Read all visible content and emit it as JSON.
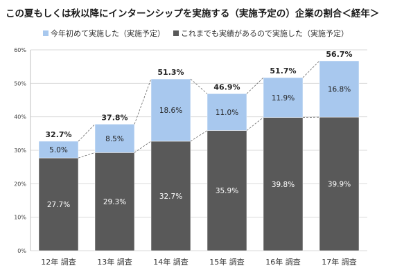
{
  "chart_data": {
    "type": "bar",
    "stacked": true,
    "title": "この夏もしくは秋以降にインターンシップを実施する（実施予定の）企業の割合＜経年＞",
    "categories": [
      "12年 調査",
      "13年 調査",
      "14年 調査",
      "15年 調査",
      "16年 調査",
      "17年 調査"
    ],
    "series": [
      {
        "name": "これまでも実績があるので実施した（実施予定）",
        "color": "#595959",
        "values": [
          27.7,
          29.3,
          32.7,
          35.9,
          39.8,
          39.9
        ],
        "labels": [
          "27.7%",
          "29.3%",
          "32.7%",
          "35.9%",
          "39.8%",
          "39.9%"
        ]
      },
      {
        "name": "今年初めて実施した（実施予定）",
        "color": "#a8c8ee",
        "values": [
          5.0,
          8.5,
          18.6,
          11.0,
          11.9,
          16.8
        ],
        "labels": [
          "5.0%",
          "8.5%",
          "18.6%",
          "11.0%",
          "11.9%",
          "16.8%"
        ]
      }
    ],
    "totals": [
      32.7,
      37.8,
      51.3,
      46.9,
      51.7,
      56.7
    ],
    "total_labels": [
      "32.7%",
      "37.8%",
      "51.3%",
      "46.9%",
      "51.7%",
      "56.7%"
    ],
    "ylim": [
      0,
      60
    ],
    "yticks": [
      0,
      10,
      20,
      30,
      40,
      50,
      60
    ],
    "ytick_labels": [
      "0%",
      "10%",
      "20%",
      "30%",
      "40%",
      "50%",
      "60%"
    ],
    "grid": true,
    "legend_position": "top",
    "connector_lines": true
  }
}
